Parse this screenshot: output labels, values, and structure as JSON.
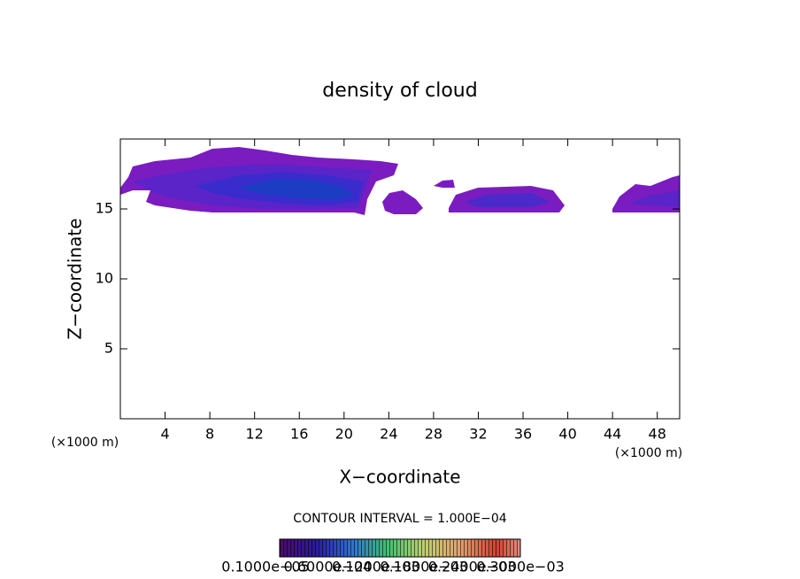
{
  "chart_data": {
    "type": "contour",
    "title": "density of cloud",
    "x_label": "X−coordinate",
    "y_label": "Z−coordinate",
    "x_unit_label": "(×1000 m)",
    "y_unit_label": "(×1000 m)",
    "xlim": [
      0,
      50
    ],
    "ylim": [
      0,
      20
    ],
    "xticks": [
      4,
      8,
      12,
      16,
      20,
      24,
      28,
      32,
      36,
      40,
      44,
      48
    ],
    "yticks": [
      5,
      10,
      15
    ],
    "contour_interval_label": "CONTOUR INTERVAL = 1.000E−04",
    "colorbar_labels": [
      "0.1000e−05",
      "0.6000e−04",
      "0.1200e−03",
      "0.1800e−03",
      "0.2400e−03",
      "0.3000e−03"
    ]
  }
}
